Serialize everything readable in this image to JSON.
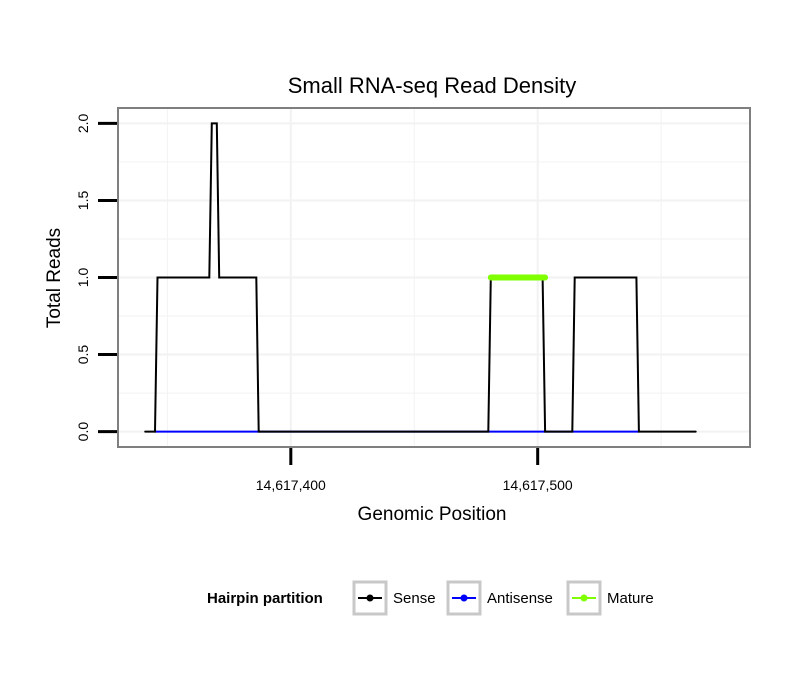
{
  "chart_data": {
    "type": "line",
    "title": "Small RNA-seq Read Density",
    "xlabel": "Genomic Position",
    "ylabel": "Total Reads",
    "xlim": [
      14617330,
      14617586
    ],
    "ylim": [
      -0.1,
      2.1
    ],
    "x_ticks": [
      14617400,
      14617500
    ],
    "x_tick_labels": [
      "14,617,400",
      "14,617,500"
    ],
    "y_ticks": [
      0.0,
      0.5,
      1.0,
      1.5,
      2.0
    ],
    "y_tick_labels": [
      "0.0",
      "0.5",
      "1.0",
      "1.5",
      "2.0"
    ],
    "grid": true,
    "legend_position": "bottom",
    "legend_title": "Hairpin partition",
    "series": [
      {
        "name": "Sense",
        "color": "#000000",
        "x": [
          14617341,
          14617345,
          14617346,
          14617367,
          14617368,
          14617370,
          14617371,
          14617372,
          14617373,
          14617386,
          14617387,
          14617480,
          14617481,
          14617502,
          14617503,
          14617514,
          14617515,
          14617540,
          14617541,
          14617564
        ],
        "values": [
          0,
          0,
          1,
          1,
          2,
          2,
          1,
          1,
          1,
          1,
          0,
          0,
          1,
          1,
          0,
          0,
          1,
          1,
          0,
          0
        ]
      },
      {
        "name": "Antisense",
        "color": "#0000ff",
        "x": [
          14617345,
          14617541
        ],
        "values": [
          0,
          0
        ]
      },
      {
        "name": "Mature",
        "color": "#7fff00",
        "x": [
          14617481,
          14617503
        ],
        "values": [
          1,
          1
        ]
      }
    ]
  }
}
